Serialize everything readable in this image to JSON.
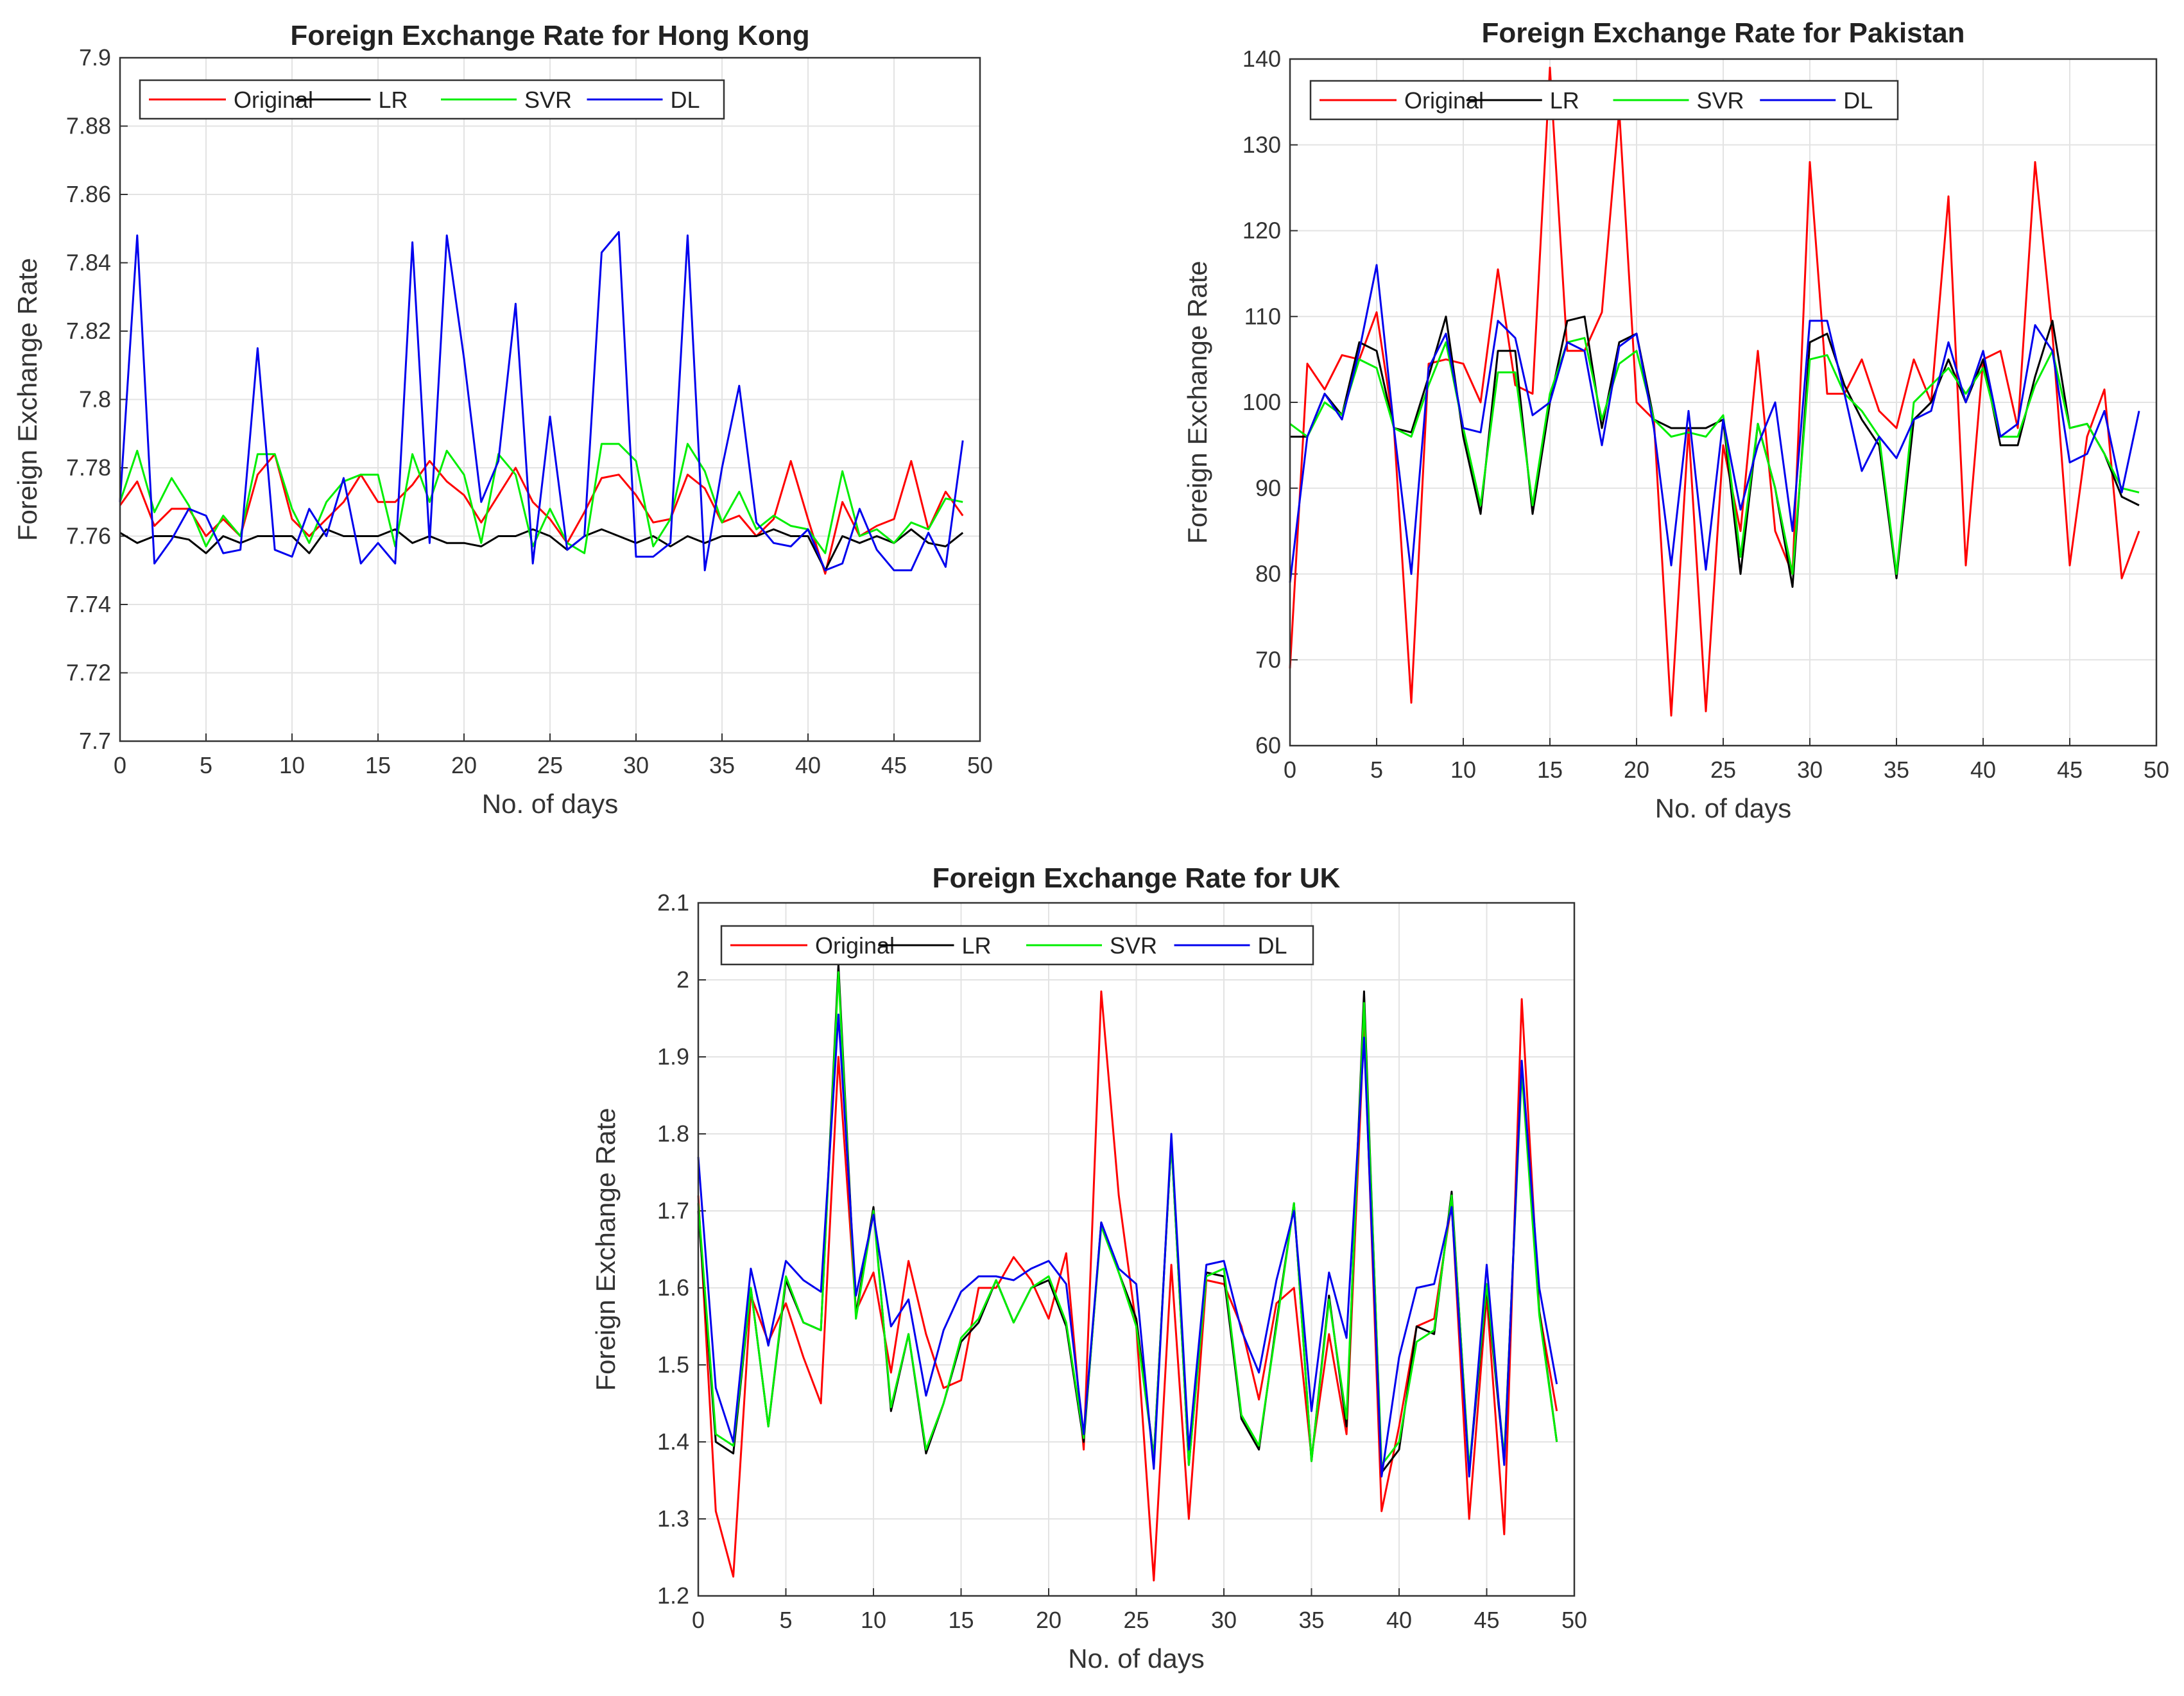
{
  "chart_data": [
    {
      "type": "line",
      "title": "Foreign Exchange Rate for Hong Kong",
      "xlabel": "No. of days",
      "ylabel": "Foreign Exchange Rate",
      "xlim": [
        0,
        50
      ],
      "ylim": [
        7.7,
        7.9
      ],
      "xticks": [
        "0",
        "5",
        "10",
        "15",
        "20",
        "25",
        "30",
        "35",
        "40",
        "45",
        "50"
      ],
      "yticks": [
        "7.7",
        "7.72",
        "7.74",
        "7.76",
        "7.78",
        "7.8",
        "7.82",
        "7.84",
        "7.86",
        "7.88",
        "7.9"
      ],
      "grid": true,
      "legend_position": "top",
      "x": [
        0,
        1,
        2,
        3,
        4,
        5,
        6,
        7,
        8,
        9,
        10,
        11,
        12,
        13,
        14,
        15,
        16,
        17,
        18,
        19,
        20,
        21,
        22,
        23,
        24,
        25,
        26,
        27,
        28,
        29,
        30,
        31,
        32,
        33,
        34,
        35,
        36,
        37,
        38,
        39,
        40,
        41,
        42,
        43,
        44,
        45,
        46,
        47,
        48,
        49
      ],
      "series": [
        {
          "name": "Original",
          "color": "#ff0000",
          "values": [
            7.769,
            7.776,
            7.763,
            7.768,
            7.768,
            7.76,
            7.765,
            7.76,
            7.778,
            7.784,
            7.765,
            7.76,
            7.765,
            7.77,
            7.778,
            7.77,
            7.77,
            7.775,
            7.782,
            7.776,
            7.772,
            7.764,
            7.772,
            7.78,
            7.77,
            7.765,
            7.758,
            7.767,
            7.777,
            7.778,
            7.772,
            7.764,
            7.765,
            7.778,
            7.774,
            7.764,
            7.766,
            7.76,
            7.765,
            7.782,
            7.765,
            7.749,
            7.77,
            7.76,
            7.763,
            7.765,
            7.782,
            7.762,
            7.773,
            7.766
          ]
        },
        {
          "name": "LR",
          "color": "#000000",
          "values": [
            7.761,
            7.758,
            7.76,
            7.76,
            7.759,
            7.755,
            7.76,
            7.758,
            7.76,
            7.76,
            7.76,
            7.755,
            7.762,
            7.76,
            7.76,
            7.76,
            7.762,
            7.758,
            7.76,
            7.758,
            7.758,
            7.757,
            7.76,
            7.76,
            7.762,
            7.76,
            7.756,
            7.76,
            7.762,
            7.76,
            7.758,
            7.76,
            7.757,
            7.76,
            7.758,
            7.76,
            7.76,
            7.76,
            7.762,
            7.76,
            7.76,
            7.75,
            7.76,
            7.758,
            7.76,
            7.758,
            7.762,
            7.758,
            7.757,
            7.761
          ]
        },
        {
          "name": "SVR",
          "color": "#00ee00",
          "values": [
            7.77,
            7.785,
            7.767,
            7.777,
            7.769,
            7.757,
            7.766,
            7.76,
            7.784,
            7.784,
            7.768,
            7.758,
            7.77,
            7.776,
            7.778,
            7.778,
            7.757,
            7.784,
            7.77,
            7.785,
            7.778,
            7.758,
            7.784,
            7.778,
            7.757,
            7.768,
            7.758,
            7.755,
            7.787,
            7.787,
            7.782,
            7.757,
            7.765,
            7.787,
            7.779,
            7.764,
            7.773,
            7.762,
            7.766,
            7.763,
            7.762,
            7.755,
            7.779,
            7.76,
            7.762,
            7.758,
            7.764,
            7.762,
            7.771,
            7.77
          ]
        },
        {
          "name": "DL",
          "color": "#0000ee",
          "values": [
            7.77,
            7.848,
            7.752,
            7.759,
            7.768,
            7.766,
            7.755,
            7.756,
            7.815,
            7.756,
            7.754,
            7.768,
            7.76,
            7.777,
            7.752,
            7.758,
            7.752,
            7.846,
            7.758,
            7.848,
            7.812,
            7.77,
            7.782,
            7.828,
            7.752,
            7.795,
            7.756,
            7.76,
            7.843,
            7.849,
            7.754,
            7.754,
            7.758,
            7.848,
            7.75,
            7.78,
            7.804,
            7.764,
            7.758,
            7.757,
            7.762,
            7.75,
            7.752,
            7.768,
            7.756,
            7.75,
            7.75,
            7.761,
            7.751,
            7.788
          ]
        }
      ]
    },
    {
      "type": "line",
      "title": "Foreign Exchange Rate for Pakistan",
      "xlabel": "No. of days",
      "ylabel": "Foreign Exchange Rate",
      "xlim": [
        0,
        50
      ],
      "ylim": [
        60,
        140
      ],
      "xticks": [
        "0",
        "5",
        "10",
        "15",
        "20",
        "25",
        "30",
        "35",
        "40",
        "45",
        "50"
      ],
      "yticks": [
        "60",
        "70",
        "80",
        "90",
        "100",
        "110",
        "120",
        "130",
        "140"
      ],
      "grid": true,
      "legend_position": "top",
      "x": [
        0,
        1,
        2,
        3,
        4,
        5,
        6,
        7,
        8,
        9,
        10,
        11,
        12,
        13,
        14,
        15,
        16,
        17,
        18,
        19,
        20,
        21,
        22,
        23,
        24,
        25,
        26,
        27,
        28,
        29,
        30,
        31,
        32,
        33,
        34,
        35,
        36,
        37,
        38,
        39,
        40,
        41,
        42,
        43,
        44,
        45,
        46,
        47,
        48,
        49
      ],
      "series": [
        {
          "name": "Original",
          "color": "#ff0000",
          "values": [
            69,
            104.5,
            101.5,
            105.5,
            105,
            110.5,
            97,
            65,
            104.5,
            105,
            104.5,
            100,
            115.5,
            102,
            101,
            139,
            106,
            106,
            110.5,
            134,
            100,
            98,
            63.5,
            97,
            64,
            95,
            85,
            106,
            85,
            80,
            128,
            101,
            101,
            105,
            99,
            97,
            105,
            100,
            124,
            81,
            105,
            106,
            97,
            128,
            108,
            81,
            96,
            101.5,
            79.5,
            85
          ]
        },
        {
          "name": "LR",
          "color": "#000000",
          "values": [
            96,
            96,
            101,
            98.5,
            107,
            106,
            97,
            96.5,
            103,
            110,
            96,
            87,
            106,
            106,
            87,
            100,
            109.5,
            110,
            97,
            107,
            108,
            98,
            97,
            97,
            97,
            98,
            80,
            97.5,
            90,
            78.5,
            107,
            108,
            102,
            98,
            95,
            79.5,
            98,
            100,
            105,
            100,
            105,
            95,
            95,
            103,
            109.5,
            97,
            97.5,
            94,
            89,
            88
          ]
        },
        {
          "name": "SVR",
          "color": "#00ee00",
          "values": [
            97.5,
            96,
            100,
            98.5,
            105,
            104,
            97,
            96,
            102,
            107,
            97,
            88,
            103.5,
            103.5,
            88,
            101,
            107,
            107.5,
            98,
            104.5,
            106,
            98,
            96,
            96.5,
            96,
            98.5,
            82,
            97.5,
            90,
            80,
            105,
            105.5,
            101,
            99,
            96,
            80,
            100,
            102,
            104,
            101,
            104,
            96,
            96,
            102,
            106,
            97,
            97.5,
            94,
            90,
            89.5
          ]
        },
        {
          "name": "DL",
          "color": "#0000ee",
          "values": [
            79,
            96,
            101,
            98,
            106,
            116,
            97,
            80,
            104,
            108,
            97,
            96.5,
            109.5,
            107.5,
            98.5,
            100,
            107,
            106,
            95,
            106.5,
            108,
            97,
            81,
            99,
            80.5,
            98,
            87.5,
            95,
            100,
            85,
            109.5,
            109.5,
            101,
            92,
            96,
            93.5,
            98,
            99,
            107,
            100,
            106,
            96,
            97.5,
            109,
            106,
            93,
            94,
            99,
            89.5,
            99
          ]
        }
      ]
    },
    {
      "type": "line",
      "title": "Foreign Exchange Rate for UK",
      "xlabel": "No. of days",
      "ylabel": "Foreign Exchange Rate",
      "xlim": [
        0,
        50
      ],
      "ylim": [
        1.2,
        2.1
      ],
      "xticks": [
        "0",
        "5",
        "10",
        "15",
        "20",
        "25",
        "30",
        "35",
        "40",
        "45",
        "50"
      ],
      "yticks": [
        "1.2",
        "1.3",
        "1.4",
        "1.5",
        "1.6",
        "1.7",
        "1.8",
        "1.9",
        "2",
        "2.1"
      ],
      "grid": true,
      "legend_position": "top",
      "x": [
        0,
        1,
        2,
        3,
        4,
        5,
        6,
        7,
        8,
        9,
        10,
        11,
        12,
        13,
        14,
        15,
        16,
        17,
        18,
        19,
        20,
        21,
        22,
        23,
        24,
        25,
        26,
        27,
        28,
        29,
        30,
        31,
        32,
        33,
        34,
        35,
        36,
        37,
        38,
        39,
        40,
        41,
        42,
        43,
        44,
        45,
        46,
        47,
        48,
        49
      ],
      "series": [
        {
          "name": "Original",
          "color": "#ff0000",
          "values": [
            1.72,
            1.31,
            1.225,
            1.59,
            1.53,
            1.58,
            1.51,
            1.45,
            1.9,
            1.57,
            1.62,
            1.49,
            1.635,
            1.54,
            1.47,
            1.48,
            1.6,
            1.6,
            1.64,
            1.61,
            1.56,
            1.645,
            1.39,
            1.985,
            1.72,
            1.55,
            1.22,
            1.63,
            1.3,
            1.61,
            1.605,
            1.55,
            1.455,
            1.58,
            1.6,
            1.38,
            1.54,
            1.41,
            1.94,
            1.31,
            1.42,
            1.55,
            1.56,
            1.71,
            1.3,
            1.59,
            1.28,
            1.975,
            1.57,
            1.44
          ]
        },
        {
          "name": "LR",
          "color": "#000000",
          "values": [
            1.7,
            1.4,
            1.385,
            1.6,
            1.42,
            1.61,
            1.555,
            1.545,
            2.02,
            1.565,
            1.705,
            1.44,
            1.54,
            1.385,
            1.45,
            1.53,
            1.555,
            1.61,
            1.555,
            1.6,
            1.61,
            1.55,
            1.4,
            1.685,
            1.62,
            1.56,
            1.38,
            1.79,
            1.37,
            1.62,
            1.615,
            1.43,
            1.39,
            1.555,
            1.71,
            1.375,
            1.59,
            1.42,
            1.985,
            1.36,
            1.39,
            1.55,
            1.54,
            1.725,
            1.36,
            1.6,
            1.375,
            1.89,
            1.57,
            1.4
          ]
        },
        {
          "name": "SVR",
          "color": "#00ee00",
          "values": [
            1.71,
            1.41,
            1.395,
            1.6,
            1.42,
            1.615,
            1.555,
            1.545,
            2.01,
            1.56,
            1.7,
            1.445,
            1.54,
            1.39,
            1.45,
            1.535,
            1.56,
            1.61,
            1.555,
            1.6,
            1.615,
            1.555,
            1.405,
            1.68,
            1.62,
            1.55,
            1.38,
            1.79,
            1.37,
            1.615,
            1.625,
            1.435,
            1.395,
            1.55,
            1.71,
            1.375,
            1.585,
            1.43,
            1.97,
            1.37,
            1.4,
            1.53,
            1.545,
            1.72,
            1.365,
            1.605,
            1.38,
            1.88,
            1.565,
            1.4
          ]
        },
        {
          "name": "DL",
          "color": "#0000ee",
          "values": [
            1.77,
            1.47,
            1.4,
            1.625,
            1.525,
            1.635,
            1.61,
            1.595,
            1.955,
            1.59,
            1.695,
            1.55,
            1.585,
            1.46,
            1.545,
            1.595,
            1.615,
            1.615,
            1.61,
            1.625,
            1.635,
            1.605,
            1.41,
            1.685,
            1.625,
            1.605,
            1.365,
            1.8,
            1.39,
            1.63,
            1.635,
            1.545,
            1.49,
            1.61,
            1.7,
            1.44,
            1.62,
            1.535,
            1.925,
            1.355,
            1.51,
            1.6,
            1.605,
            1.705,
            1.355,
            1.63,
            1.37,
            1.895,
            1.6,
            1.475
          ]
        }
      ]
    }
  ]
}
